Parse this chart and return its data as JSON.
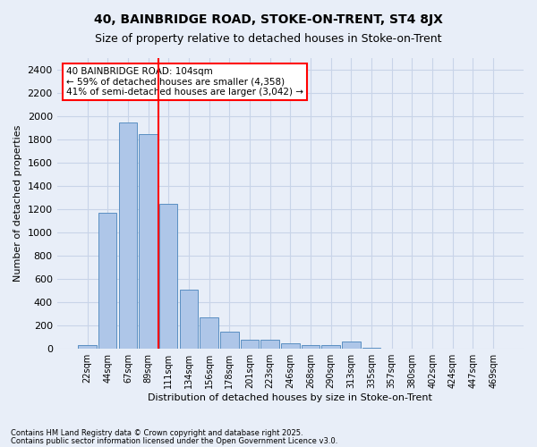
{
  "title1": "40, BAINBRIDGE ROAD, STOKE-ON-TRENT, ST4 8JX",
  "title2": "Size of property relative to detached houses in Stoke-on-Trent",
  "xlabel": "Distribution of detached houses by size in Stoke-on-Trent",
  "ylabel": "Number of detached properties",
  "categories": [
    "22sqm",
    "44sqm",
    "67sqm",
    "89sqm",
    "111sqm",
    "134sqm",
    "156sqm",
    "178sqm",
    "201sqm",
    "223sqm",
    "246sqm",
    "268sqm",
    "290sqm",
    "313sqm",
    "335sqm",
    "357sqm",
    "380sqm",
    "402sqm",
    "424sqm",
    "447sqm",
    "469sqm"
  ],
  "values": [
    30,
    1170,
    1950,
    1850,
    1250,
    510,
    270,
    150,
    80,
    80,
    45,
    30,
    30,
    60,
    10,
    0,
    0,
    0,
    0,
    0,
    0
  ],
  "bar_color": "#aec6e8",
  "bar_edge_color": "#5a8fc2",
  "grid_color": "#c8d4e8",
  "bg_color": "#e8eef8",
  "vline_color": "red",
  "vline_pos": 3.5,
  "annotation_text": "40 BAINBRIDGE ROAD: 104sqm\n← 59% of detached houses are smaller (4,358)\n41% of semi-detached houses are larger (3,042) →",
  "annotation_box_color": "white",
  "annotation_box_edge": "red",
  "footnote1": "Contains HM Land Registry data © Crown copyright and database right 2025.",
  "footnote2": "Contains public sector information licensed under the Open Government Licence v3.0.",
  "ylim": [
    0,
    2500
  ],
  "yticks": [
    0,
    200,
    400,
    600,
    800,
    1000,
    1200,
    1400,
    1600,
    1800,
    2000,
    2200,
    2400
  ]
}
